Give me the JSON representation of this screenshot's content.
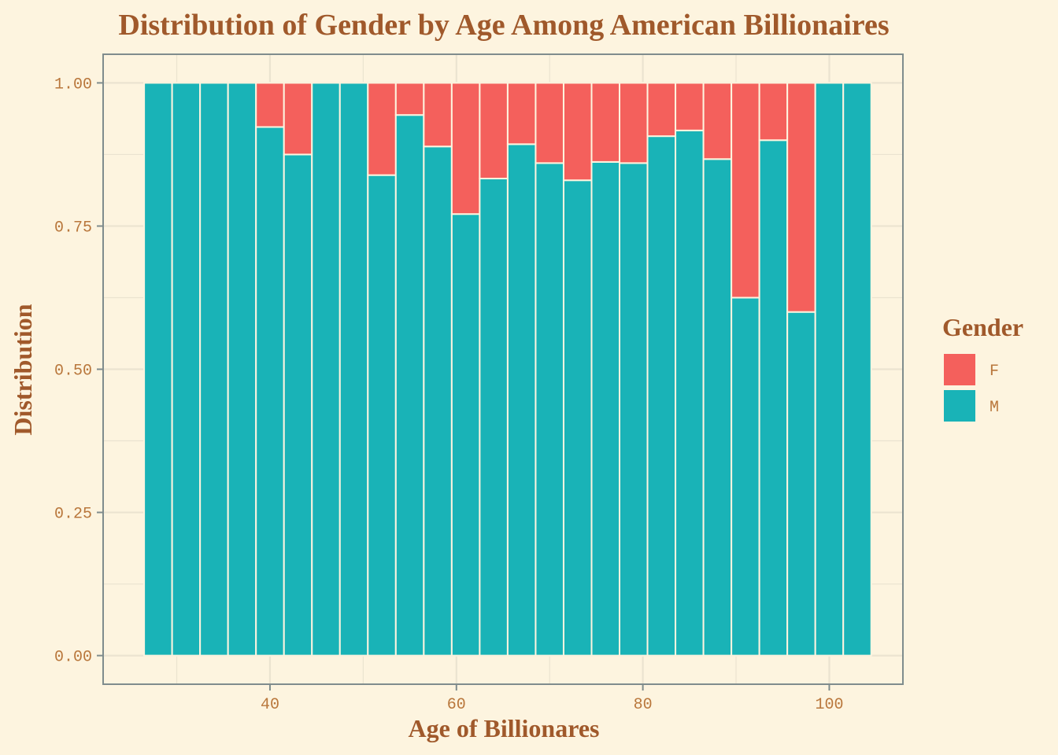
{
  "colors": {
    "background": "#fdf4df",
    "panel_border": "#7f8c8d",
    "grid": "#ebe3d0",
    "text": "#a0592b",
    "tick_text": "#b9773c",
    "F": "#f4605c",
    "M": "#19b3b7"
  },
  "chart_data": {
    "type": "bar",
    "stacked": true,
    "normalized": true,
    "title": "Distribution of Gender by Age Among American Billionaires",
    "xlabel": "Age of Billionares",
    "ylabel": "Distribution",
    "xlim": [
      22.1,
      107.9
    ],
    "ylim": [
      -0.05,
      1.05
    ],
    "x_ticks": [
      "40",
      "60",
      "80",
      "100"
    ],
    "y_ticks": [
      "0.00",
      "0.25",
      "0.50",
      "0.75",
      "1.00"
    ],
    "y_tick_values": [
      0,
      0.25,
      0.5,
      0.75,
      1.0
    ],
    "grid": true,
    "legend": {
      "title": "Gender",
      "position": "right",
      "entries": [
        "F",
        "M"
      ]
    },
    "bin_width": 3,
    "bin_centers": [
      28,
      31,
      34,
      37,
      40,
      43,
      46,
      49,
      52,
      55,
      58,
      61,
      64,
      67,
      70,
      73,
      76,
      79,
      82,
      85,
      88,
      91,
      94,
      97,
      100,
      103
    ],
    "series": [
      {
        "name": "M",
        "values": [
          1.0,
          1.0,
          1.0,
          1.0,
          0.923,
          0.875,
          1.0,
          1.0,
          0.839,
          0.944,
          0.889,
          0.771,
          0.833,
          0.893,
          0.86,
          0.83,
          0.862,
          0.86,
          0.907,
          0.917,
          0.867,
          0.625,
          0.9,
          0.6,
          1.0,
          1.0
        ]
      },
      {
        "name": "F",
        "values": [
          0.0,
          0.0,
          0.0,
          0.0,
          0.077,
          0.125,
          0.0,
          0.0,
          0.161,
          0.056,
          0.111,
          0.229,
          0.167,
          0.107,
          0.14,
          0.17,
          0.138,
          0.14,
          0.093,
          0.083,
          0.133,
          0.375,
          0.1,
          0.4,
          0.0,
          0.0
        ]
      }
    ]
  }
}
